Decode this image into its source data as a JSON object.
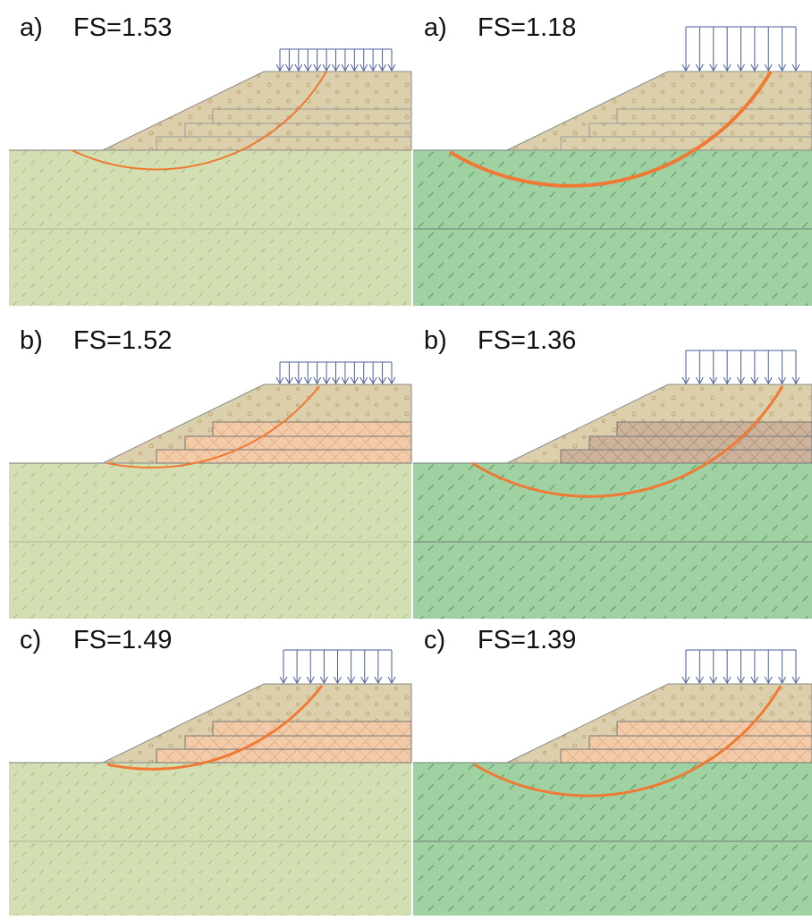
{
  "panels": [
    {
      "label": "a)",
      "fs": "FS=1.53"
    },
    {
      "label": "a)",
      "fs": "FS=1.18"
    },
    {
      "label": "b)",
      "fs": "FS=1.52"
    },
    {
      "label": "b)",
      "fs": "FS=1.36"
    },
    {
      "label": "c)",
      "fs": "FS=1.49"
    },
    {
      "label": "c)",
      "fs": "FS=1.39"
    }
  ]
}
